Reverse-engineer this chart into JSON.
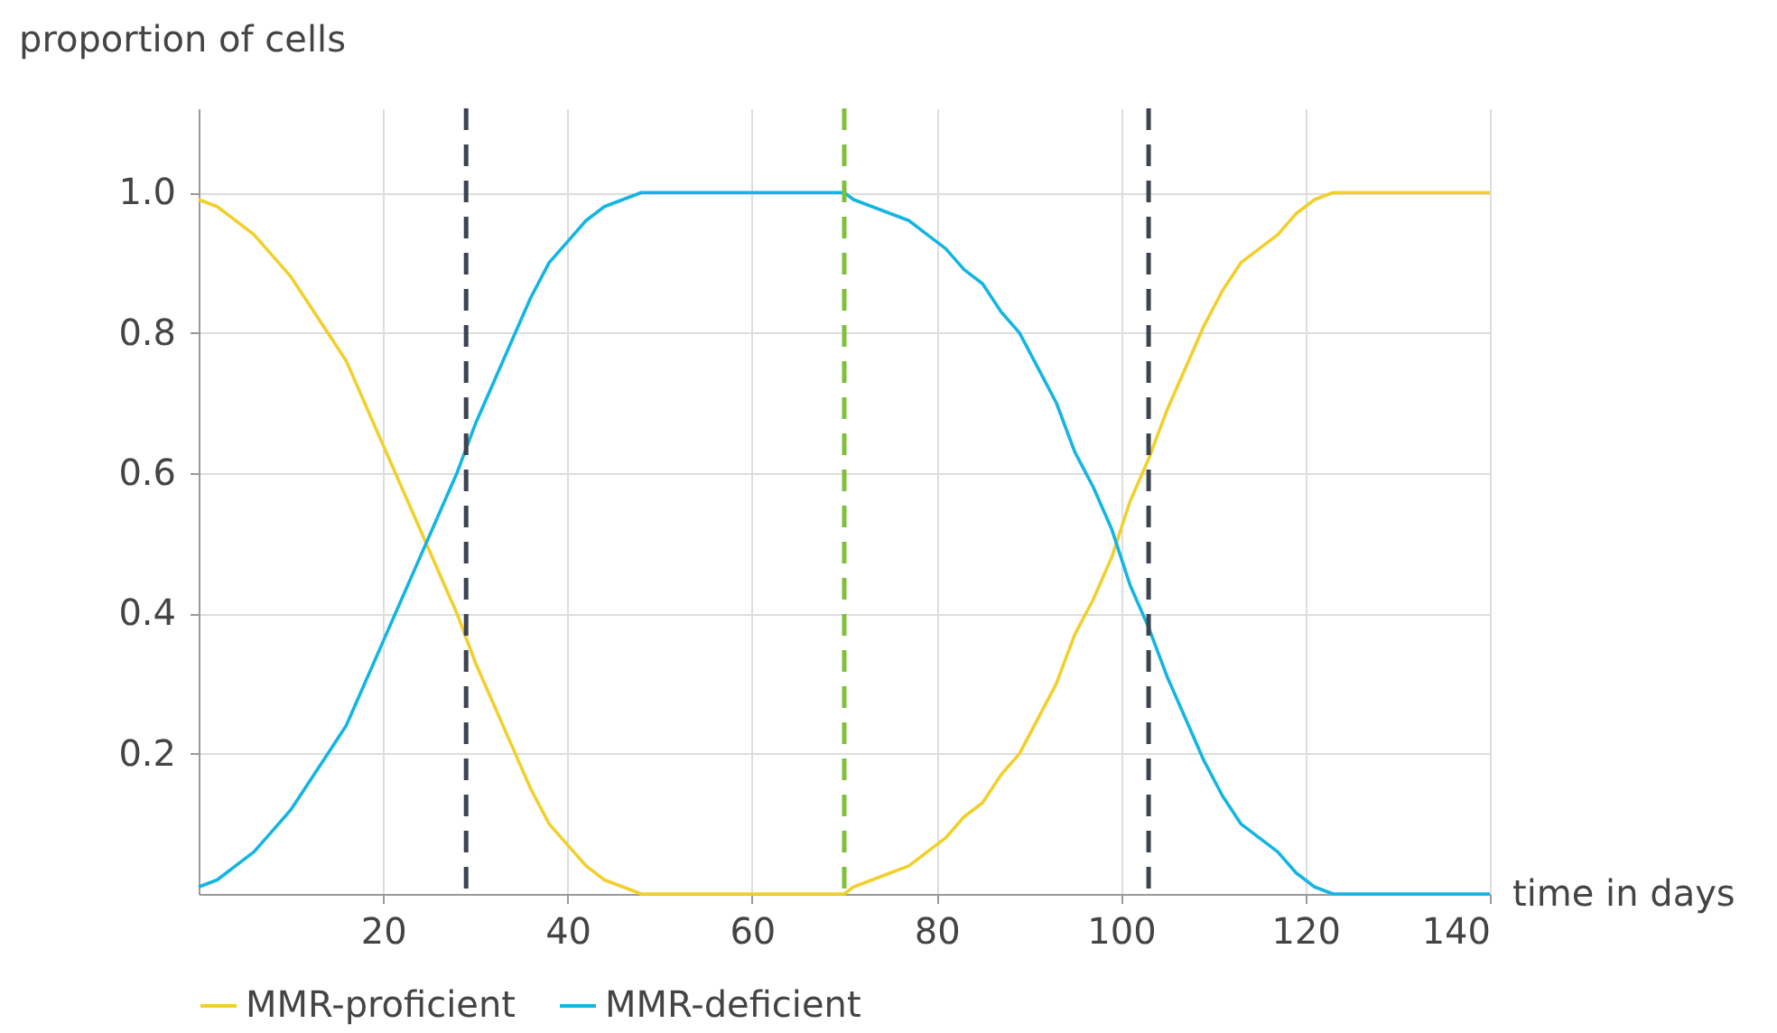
{
  "chart_data": {
    "type": "line",
    "xlabel": "time in days",
    "ylabel": "proportion of cells",
    "x": [
      0,
      2,
      4,
      6,
      8,
      10,
      12,
      14,
      16,
      18,
      20,
      22,
      24,
      26,
      28,
      30,
      32,
      34,
      36,
      38,
      40,
      42,
      44,
      46,
      48,
      50,
      60,
      70,
      71,
      73,
      75,
      77,
      79,
      81,
      83,
      85,
      87,
      89,
      91,
      93,
      95,
      97,
      99,
      101,
      103,
      105,
      107,
      109,
      111,
      113,
      115,
      117,
      119,
      121,
      123,
      130,
      140
    ],
    "series": [
      {
        "name": "MMR-proficient",
        "color": "#f2d02b",
        "values": [
          0.99,
          0.98,
          0.96,
          0.94,
          0.91,
          0.88,
          0.84,
          0.8,
          0.76,
          0.7,
          0.64,
          0.58,
          0.52,
          0.46,
          0.4,
          0.33,
          0.27,
          0.21,
          0.15,
          0.1,
          0.07,
          0.04,
          0.02,
          0.01,
          0.0,
          0.0,
          0.0,
          0.0,
          0.01,
          0.02,
          0.03,
          0.04,
          0.06,
          0.08,
          0.11,
          0.13,
          0.17,
          0.2,
          0.25,
          0.3,
          0.37,
          0.42,
          0.48,
          0.56,
          0.62,
          0.69,
          0.75,
          0.81,
          0.86,
          0.9,
          0.92,
          0.94,
          0.97,
          0.99,
          1.0,
          1.0,
          1.0
        ]
      },
      {
        "name": "MMR-deficient",
        "color": "#13b5e3",
        "values": [
          0.01,
          0.02,
          0.04,
          0.06,
          0.09,
          0.12,
          0.16,
          0.2,
          0.24,
          0.3,
          0.36,
          0.42,
          0.48,
          0.54,
          0.6,
          0.67,
          0.73,
          0.79,
          0.85,
          0.9,
          0.93,
          0.96,
          0.98,
          0.99,
          1.0,
          1.0,
          1.0,
          1.0,
          0.99,
          0.98,
          0.97,
          0.96,
          0.94,
          0.92,
          0.89,
          0.87,
          0.83,
          0.8,
          0.75,
          0.7,
          0.63,
          0.58,
          0.52,
          0.44,
          0.38,
          0.31,
          0.25,
          0.19,
          0.14,
          0.1,
          0.08,
          0.06,
          0.03,
          0.01,
          0.0,
          0.0,
          0.0
        ]
      }
    ],
    "xlim": [
      0,
      140
    ],
    "xticks": [
      20,
      40,
      60,
      80,
      100,
      120,
      140
    ],
    "ylim": [
      0,
      1.12
    ],
    "yticks": [
      0.2,
      0.4,
      0.6,
      0.8,
      {
        "value": 1,
        "label": "1.0"
      }
    ],
    "grid": true,
    "legend": "bottom",
    "marker": "none",
    "line_style": "solid",
    "ref_lines": [
      {
        "axis": "x",
        "value": 29,
        "color": "#3d4450",
        "line_style": "dashed"
      },
      {
        "axis": "x",
        "value": 70,
        "color": "#7dc13a",
        "line_style": "dashed"
      },
      {
        "axis": "x",
        "value": 103,
        "color": "#3d4450",
        "line_style": "dashed"
      }
    ]
  }
}
